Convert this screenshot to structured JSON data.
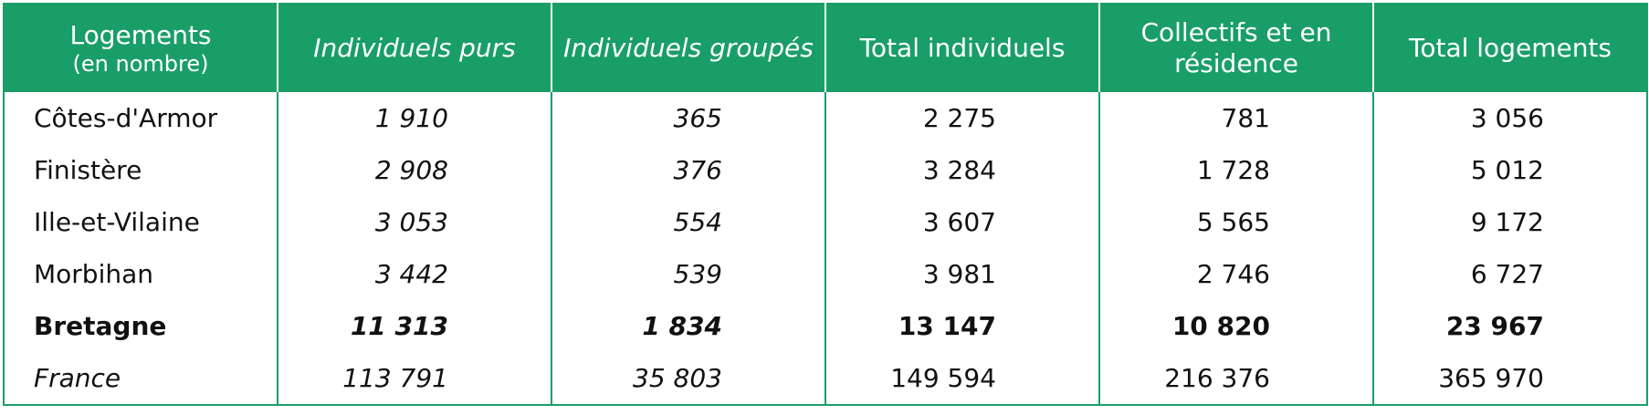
{
  "table": {
    "header": {
      "first": [
        "Logements",
        "(en nombre)"
      ],
      "columns": [
        "Individuels purs",
        "Individuels groupés",
        "Total individuels",
        "Collectifs et en résidence",
        "Total logements"
      ]
    },
    "rows": [
      {
        "label": "Côtes-d'Armor",
        "values": [
          "1 910",
          "365",
          "2 275",
          "781",
          "3 056"
        ]
      },
      {
        "label": "Finistère",
        "values": [
          "2 908",
          "376",
          "3 284",
          "1 728",
          "5 012"
        ]
      },
      {
        "label": "Ille-et-Vilaine",
        "values": [
          "3 053",
          "554",
          "3 607",
          "5 565",
          "9 172"
        ]
      },
      {
        "label": "Morbihan",
        "values": [
          "3 442",
          "539",
          "3 981",
          "2 746",
          "6 727"
        ]
      },
      {
        "label": "Bretagne",
        "values": [
          "11 313",
          "1 834",
          "13 147",
          "10 820",
          "23 967"
        ]
      },
      {
        "label": "France",
        "values": [
          "113 791",
          "35 803",
          "149 594",
          "216 376",
          "365 970"
        ]
      }
    ]
  }
}
